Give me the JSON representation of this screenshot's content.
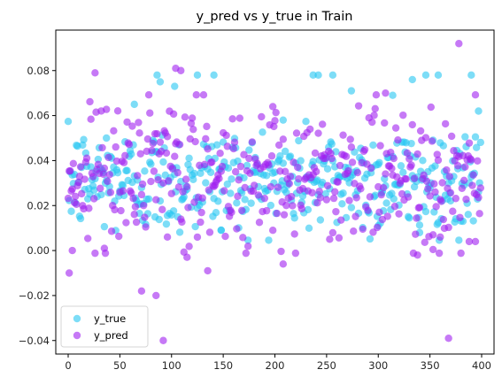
{
  "chart_data": {
    "type": "scatter",
    "title": "y_pred vs y_true in Train",
    "xlabel": "",
    "ylabel": "",
    "xlim": [
      -12,
      412
    ],
    "ylim": [
      -0.046,
      0.098
    ],
    "xticks": [
      0,
      50,
      100,
      150,
      200,
      250,
      300,
      350,
      400
    ],
    "xtick_labels": [
      "0",
      "50",
      "100",
      "150",
      "200",
      "250",
      "300",
      "350",
      "400"
    ],
    "yticks": [
      -0.04,
      -0.02,
      0.0,
      0.02,
      0.04,
      0.06,
      0.08
    ],
    "ytick_labels": [
      "−0.04",
      "−0.02",
      "0.00",
      "0.02",
      "0.04",
      "0.06",
      "0.08"
    ],
    "grid": false,
    "legend_position": "lower-left",
    "n_points_per_series": 400,
    "series": [
      {
        "name": "y_true",
        "color": "#26c6f2",
        "mean": 0.031,
        "std": 0.012,
        "notable_points": [
          {
            "x": 37,
            "y": 0.05
          },
          {
            "x": 64,
            "y": 0.065
          },
          {
            "x": 86,
            "y": 0.078
          },
          {
            "x": 89,
            "y": 0.075
          },
          {
            "x": 103,
            "y": 0.073
          },
          {
            "x": 125,
            "y": 0.078
          },
          {
            "x": 141,
            "y": 0.078
          },
          {
            "x": 208,
            "y": 0.058
          },
          {
            "x": 237,
            "y": 0.078
          },
          {
            "x": 242,
            "y": 0.078
          },
          {
            "x": 256,
            "y": 0.078
          },
          {
            "x": 274,
            "y": 0.071
          },
          {
            "x": 314,
            "y": 0.069
          },
          {
            "x": 333,
            "y": 0.076
          },
          {
            "x": 346,
            "y": 0.078
          },
          {
            "x": 358,
            "y": 0.078
          },
          {
            "x": 390,
            "y": 0.078
          },
          {
            "x": 397,
            "y": 0.062
          },
          {
            "x": 148,
            "y": 0.009
          },
          {
            "x": 300,
            "y": 0.011
          },
          {
            "x": 340,
            "y": 0.008
          },
          {
            "x": 382,
            "y": 0.013
          }
        ]
      },
      {
        "name": "y_pred",
        "color": "#a020f0",
        "mean": 0.034,
        "std": 0.016,
        "notable_points": [
          {
            "x": 1,
            "y": -0.01
          },
          {
            "x": 4,
            "y": 0.0
          },
          {
            "x": 26,
            "y": 0.079
          },
          {
            "x": 35,
            "y": 0.001
          },
          {
            "x": 71,
            "y": -0.018
          },
          {
            "x": 85,
            "y": -0.02
          },
          {
            "x": 92,
            "y": -0.04
          },
          {
            "x": 96,
            "y": 0.006
          },
          {
            "x": 104,
            "y": 0.081
          },
          {
            "x": 109,
            "y": 0.08
          },
          {
            "x": 115,
            "y": -0.003
          },
          {
            "x": 135,
            "y": -0.009
          },
          {
            "x": 198,
            "y": 0.064
          },
          {
            "x": 208,
            "y": -0.006
          },
          {
            "x": 307,
            "y": 0.07
          },
          {
            "x": 338,
            "y": -0.002
          },
          {
            "x": 353,
            "y": 0.007
          },
          {
            "x": 360,
            "y": 0.006
          },
          {
            "x": 368,
            "y": -0.039
          },
          {
            "x": 378,
            "y": 0.092
          },
          {
            "x": 388,
            "y": 0.004
          },
          {
            "x": 394,
            "y": 0.004
          }
        ]
      }
    ]
  }
}
